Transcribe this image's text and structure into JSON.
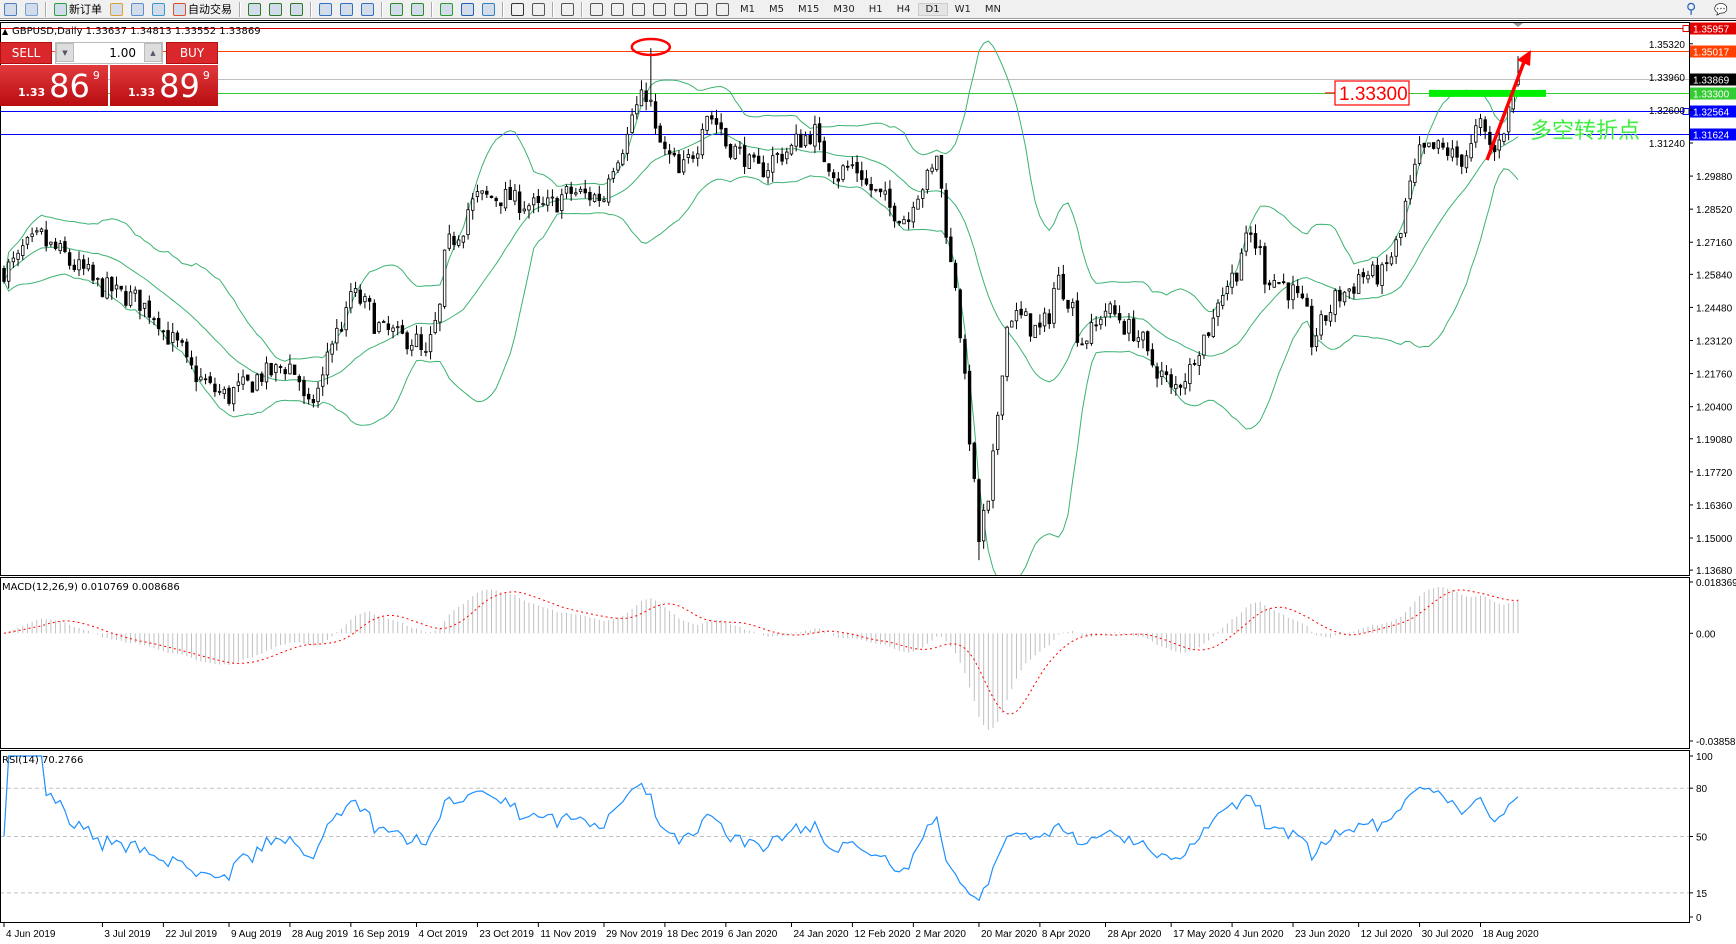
{
  "toolbar": {
    "new_order_label": "新订单",
    "auto_trading_label": "自动交易",
    "timeframes": [
      "M1",
      "M5",
      "M15",
      "M30",
      "H1",
      "H4",
      "D1",
      "W1",
      "MN"
    ],
    "active_timeframe": "D1",
    "icons": [
      "new-chart-icon",
      "zoom-icon",
      "new-order-icon",
      "metaeditor-icon",
      "market-watch-icon",
      "signals-icon",
      "auto-trading-icon",
      "bar-chart-icon",
      "candlestick-icon",
      "line-chart-icon",
      "zoom-in-icon",
      "zoom-out-icon",
      "tile-windows-icon",
      "autoscroll-icon",
      "chart-shift-icon",
      "indicators-icon",
      "periods-icon",
      "templates-icon",
      "cursor-icon",
      "crosshair-icon",
      "vertical-line-icon",
      "horizontal-line-icon",
      "trendline-icon",
      "fibonacci-icon",
      "equidistant-channel-icon",
      "text-icon",
      "text-label-icon",
      "arrows-icon"
    ],
    "search_icon": "search-icon",
    "chat_icon": "chat-icon"
  },
  "chart_header": "GBPUSD,Daily  1.33637 1.34813 1.33552 1.33869",
  "trade_panel": {
    "sell_label": "SELL",
    "buy_label": "BUY",
    "lot": "1.00",
    "sell_prefix": "1.33",
    "sell_big": "86",
    "sell_sup": "9",
    "buy_prefix": "1.33",
    "buy_big": "89",
    "buy_sup": "9"
  },
  "annotations": {
    "level_label": "1.33300",
    "pivot_text": "多空转折点",
    "level_label_color": "#ff0000",
    "pivot_text_color": "#33e633",
    "arrow_color": "#ff0000",
    "zone_color": "#00ee00"
  },
  "price_levels": [
    {
      "price": 1.35957,
      "label": "1.35957",
      "color": "#e00000"
    },
    {
      "price": 1.35017,
      "label": "1.35017",
      "color": "#ff4000"
    },
    {
      "price": 1.33869,
      "label": "1.33869",
      "color": "#000000",
      "line": "#c0c0c0"
    },
    {
      "price": 1.333,
      "label": "1.33300",
      "color": "#33cc33"
    },
    {
      "price": 1.32564,
      "label": "1.32564",
      "color": "#0000ff"
    },
    {
      "price": 1.31624,
      "label": "1.31624",
      "color": "#0000ff"
    }
  ],
  "chart_data": [
    {
      "type": "candlestick",
      "symbol": "GBPUSD",
      "timeframe": "Daily",
      "last_bar": {
        "open": 1.33637,
        "high": 1.34813,
        "low": 1.33552,
        "close": 1.33869
      },
      "ylim": [
        1.1368,
        1.36
      ],
      "y_ticks": [
        "1.35320",
        "1.33960",
        "1.32600",
        "1.31240",
        "1.29880",
        "1.28520",
        "1.27160",
        "1.25840",
        "1.24480",
        "1.23120",
        "1.21760",
        "1.20400",
        "1.19080",
        "1.17720",
        "1.16360",
        "1.15000",
        "1.13680"
      ],
      "x_ticks": [
        "4 Jun 2019",
        "3 Jul 2019",
        "22 Jul 2019",
        "9 Aug 2019",
        "28 Aug 2019",
        "16 Sep 2019",
        "4 Oct 2019",
        "23 Oct 2019",
        "11 Nov 2019",
        "29 Nov 2019",
        "18 Dec 2019",
        "6 Jan 2020",
        "24 Jan 2020",
        "12 Feb 2020",
        "2 Mar 2020",
        "20 Mar 2020",
        "8 Apr 2020",
        "28 Apr 2020",
        "17 May 2020",
        "4 Jun 2020",
        "23 Jun 2020",
        "12 Jul 2020",
        "30 Jul 2020",
        "18 Aug 2020"
      ],
      "x_tick_dates": [
        "2019-06-04",
        "2019-07-03",
        "2019-07-22",
        "2019-08-09",
        "2019-08-28",
        "2019-09-16",
        "2019-10-04",
        "2019-10-23",
        "2019-11-11",
        "2019-11-29",
        "2019-12-18",
        "2020-01-06",
        "2020-01-24",
        "2020-02-12",
        "2020-03-02",
        "2020-03-20",
        "2020-04-08",
        "2020-04-28",
        "2020-05-17",
        "2020-06-04",
        "2020-06-23",
        "2020-07-12",
        "2020-07-30",
        "2020-08-18"
      ],
      "close_keypoints": [
        [
          "2019-06-04",
          1.26
        ],
        [
          "2019-06-14",
          1.274
        ],
        [
          "2019-07-03",
          1.253
        ],
        [
          "2019-07-15",
          1.247
        ],
        [
          "2019-07-22",
          1.235
        ],
        [
          "2019-08-01",
          1.215
        ],
        [
          "2019-08-09",
          1.208
        ],
        [
          "2019-08-20",
          1.217
        ],
        [
          "2019-08-28",
          1.221
        ],
        [
          "2019-09-03",
          1.203
        ],
        [
          "2019-09-10",
          1.231
        ],
        [
          "2019-09-16",
          1.251
        ],
        [
          "2019-09-25",
          1.235
        ],
        [
          "2019-10-04",
          1.231
        ],
        [
          "2019-10-08",
          1.224
        ],
        [
          "2019-10-15",
          1.271
        ],
        [
          "2019-10-23",
          1.29
        ],
        [
          "2019-11-01",
          1.29
        ],
        [
          "2019-11-11",
          1.285
        ],
        [
          "2019-11-20",
          1.292
        ],
        [
          "2019-11-29",
          1.29
        ],
        [
          "2019-12-06",
          1.315
        ],
        [
          "2019-12-12",
          1.333
        ],
        [
          "2019-12-13",
          1.328
        ],
        [
          "2019-12-18",
          1.308
        ],
        [
          "2019-12-23",
          1.299
        ],
        [
          "2019-12-31",
          1.325
        ],
        [
          "2020-01-06",
          1.312
        ],
        [
          "2020-01-15",
          1.301
        ],
        [
          "2020-01-24",
          1.31
        ],
        [
          "2020-01-31",
          1.317
        ],
        [
          "2020-02-07",
          1.299
        ],
        [
          "2020-02-12",
          1.303
        ],
        [
          "2020-02-20",
          1.29
        ],
        [
          "2020-02-28",
          1.281
        ],
        [
          "2020-03-02",
          1.29
        ],
        [
          "2020-03-09",
          1.308
        ],
        [
          "2020-03-12",
          1.262
        ],
        [
          "2020-03-16",
          1.235
        ],
        [
          "2020-03-20",
          1.149
        ],
        [
          "2020-03-24",
          1.162
        ],
        [
          "2020-03-27",
          1.221
        ],
        [
          "2020-03-31",
          1.242
        ],
        [
          "2020-04-08",
          1.235
        ],
        [
          "2020-04-14",
          1.256
        ],
        [
          "2020-04-21",
          1.231
        ],
        [
          "2020-04-28",
          1.244
        ],
        [
          "2020-05-06",
          1.235
        ],
        [
          "2020-05-15",
          1.215
        ],
        [
          "2020-05-18",
          1.21
        ],
        [
          "2020-05-25",
          1.226
        ],
        [
          "2020-06-01",
          1.249
        ],
        [
          "2020-06-10",
          1.274
        ],
        [
          "2020-06-15",
          1.258
        ],
        [
          "2020-06-23",
          1.251
        ],
        [
          "2020-06-29",
          1.231
        ],
        [
          "2020-07-03",
          1.244
        ],
        [
          "2020-07-13",
          1.258
        ],
        [
          "2020-07-20",
          1.258
        ],
        [
          "2020-07-27",
          1.287
        ],
        [
          "2020-07-30",
          1.308
        ],
        [
          "2020-08-05",
          1.31
        ],
        [
          "2020-08-12",
          1.306
        ],
        [
          "2020-08-18",
          1.319
        ],
        [
          "2020-08-21",
          1.308
        ],
        [
          "2020-08-25",
          1.319
        ],
        [
          "2020-08-28",
          1.33869
        ]
      ],
      "notable_extremes": {
        "high": {
          "date": "2019-12-13",
          "price": 1.3514
        },
        "low": {
          "date": "2020-03-20",
          "price": 1.1409
        }
      },
      "overlays": [
        {
          "name": "Bollinger Bands",
          "period": 20,
          "deviation": 2,
          "color": "#3cb371"
        }
      ],
      "candle_colors": {
        "bull_fill": "#ffffff",
        "bear_fill": "#000000",
        "outline": "#000000"
      }
    },
    {
      "type": "bar+line",
      "indicator_label": "MACD(12,26,9) 0.010769 0.008686",
      "ylim": [
        -0.038585,
        0.018369
      ],
      "y_ticks": [
        "0.018369",
        "0.00",
        "-0.038585"
      ],
      "histogram_color": "#c0c0c0",
      "signal_color": "#ff0000"
    },
    {
      "type": "line",
      "indicator_label": "RSI(14) 70.2766",
      "ylim": [
        0,
        100
      ],
      "y_ticks": [
        "100",
        "80",
        "50",
        "15",
        "0"
      ],
      "levels": [
        80,
        50,
        15
      ],
      "line_color": "#1e90ff"
    }
  ]
}
